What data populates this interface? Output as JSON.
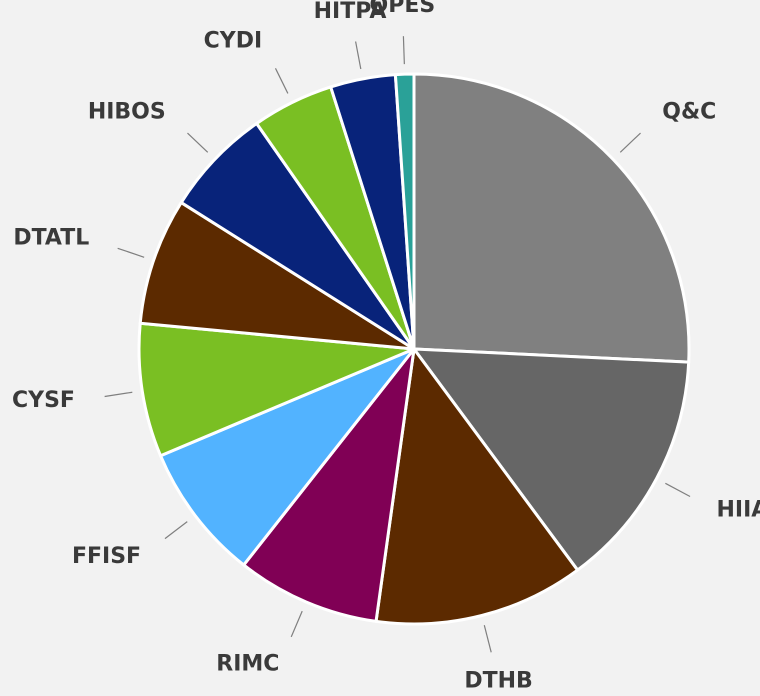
{
  "chart_data": {
    "type": "pie",
    "title": "",
    "start_angle_deg": 0,
    "direction": "clockwise",
    "categories": [
      "Q&C",
      "HIIA",
      "DTHB",
      "RIMC",
      "FFISF",
      "CYSF",
      "DTATL",
      "HIBOS",
      "CYDI",
      "HITPA",
      "OPES"
    ],
    "values": [
      26.3,
      14.4,
      12.6,
      8.6,
      8.2,
      8.0,
      7.6,
      6.5,
      4.9,
      3.9,
      1.1
    ],
    "colors": [
      "#808080",
      "#666666",
      "#5c2a00",
      "#800055",
      "#52b3ff",
      "#7abf23",
      "#5c2a00",
      "#08237a",
      "#7abf23",
      "#08237a",
      "#2aa198"
    ],
    "legend": "none",
    "label_style": "outside-with-leader-lines"
  }
}
